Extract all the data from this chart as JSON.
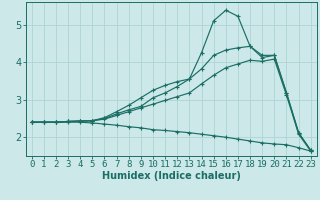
{
  "xlabel": "Humidex (Indice chaleur)",
  "bg_color": "#cce8e8",
  "line_color": "#1a6e64",
  "xlim": [
    -0.5,
    23.5
  ],
  "ylim": [
    1.5,
    5.6
  ],
  "yticks": [
    2,
    3,
    4,
    5
  ],
  "xticks": [
    0,
    1,
    2,
    3,
    4,
    5,
    6,
    7,
    8,
    9,
    10,
    11,
    12,
    13,
    14,
    15,
    16,
    17,
    18,
    19,
    20,
    21,
    22,
    23
  ],
  "line1_x": [
    0,
    1,
    2,
    3,
    4,
    5,
    6,
    7,
    8,
    9,
    10,
    11,
    12,
    13,
    14,
    15,
    16,
    17,
    18,
    19,
    20,
    21,
    22,
    23
  ],
  "line1_y": [
    2.4,
    2.4,
    2.4,
    2.42,
    2.43,
    2.44,
    2.5,
    2.62,
    2.73,
    2.82,
    3.05,
    3.18,
    3.35,
    3.55,
    4.25,
    5.1,
    5.38,
    5.22,
    4.42,
    4.18,
    4.18,
    3.18,
    2.12,
    1.65
  ],
  "line2_x": [
    0,
    1,
    2,
    3,
    4,
    5,
    6,
    7,
    8,
    9,
    10,
    11,
    12,
    13,
    14,
    15,
    16,
    17,
    18,
    19,
    20,
    21,
    22,
    23
  ],
  "line2_y": [
    2.4,
    2.4,
    2.4,
    2.42,
    2.43,
    2.44,
    2.52,
    2.68,
    2.85,
    3.05,
    3.25,
    3.38,
    3.48,
    3.55,
    3.82,
    4.18,
    4.32,
    4.38,
    4.42,
    4.12,
    4.18,
    3.18,
    2.12,
    1.65
  ],
  "line3_x": [
    0,
    1,
    2,
    3,
    4,
    5,
    6,
    7,
    8,
    9,
    10,
    11,
    12,
    13,
    14,
    15,
    16,
    17,
    18,
    19,
    20,
    21,
    22,
    23
  ],
  "line3_y": [
    2.4,
    2.4,
    2.4,
    2.42,
    2.43,
    2.44,
    2.48,
    2.58,
    2.68,
    2.78,
    2.88,
    2.98,
    3.08,
    3.18,
    3.42,
    3.65,
    3.85,
    3.95,
    4.05,
    4.02,
    4.08,
    3.12,
    2.08,
    1.63
  ],
  "line4_x": [
    0,
    1,
    2,
    3,
    4,
    5,
    6,
    7,
    8,
    9,
    10,
    11,
    12,
    13,
    14,
    15,
    16,
    17,
    18,
    19,
    20,
    21,
    22,
    23
  ],
  "line4_y": [
    2.4,
    2.4,
    2.4,
    2.4,
    2.4,
    2.38,
    2.35,
    2.32,
    2.28,
    2.25,
    2.2,
    2.18,
    2.15,
    2.12,
    2.08,
    2.04,
    2.0,
    1.95,
    1.9,
    1.85,
    1.82,
    1.8,
    1.72,
    1.63
  ],
  "grid_color": "#afd4d4",
  "xlabel_fontsize": 7,
  "tick_fontsize": 6.5
}
